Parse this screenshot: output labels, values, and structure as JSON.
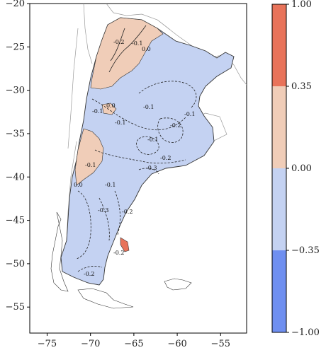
{
  "chart_data": {
    "type": "heatmap",
    "title": "",
    "xlabel": "",
    "ylabel": "",
    "xlim": [
      -77,
      -52
    ],
    "ylim": [
      -58,
      -20
    ],
    "x_ticks": [
      -75,
      -70,
      -65,
      -60,
      -55
    ],
    "x_tick_labels": [
      "−75",
      "−70",
      "−65",
      "−60",
      "−55"
    ],
    "y_ticks": [
      -20,
      -25,
      -30,
      -35,
      -40,
      -45,
      -50,
      -55
    ],
    "y_tick_labels": [
      "−20",
      "−25",
      "−30",
      "−35",
      "−40",
      "−45",
      "−50",
      "−55"
    ],
    "colorbar": {
      "levels": [
        -1.0,
        -0.35,
        0.0,
        0.35,
        1.0
      ],
      "level_labels": [
        "−1.00",
        "−0.35",
        "0.00",
        "0.35",
        "1.00"
      ],
      "colors": [
        "#6f8ff0",
        "#c4d2f2",
        "#f0cdb8",
        "#e8735a"
      ]
    },
    "contour_labels": [
      "-0.2",
      "-0.1",
      "0.0",
      "0.0",
      "-0.1",
      "-0.1",
      "-0.1",
      "-0.2",
      "-0.1",
      "-0.1",
      "-0.3",
      "-0.2",
      "-0.1",
      "0.0",
      "-0.1",
      "-0.3",
      "-0.2",
      "-0.2",
      "-0.2"
    ],
    "grid": false
  }
}
